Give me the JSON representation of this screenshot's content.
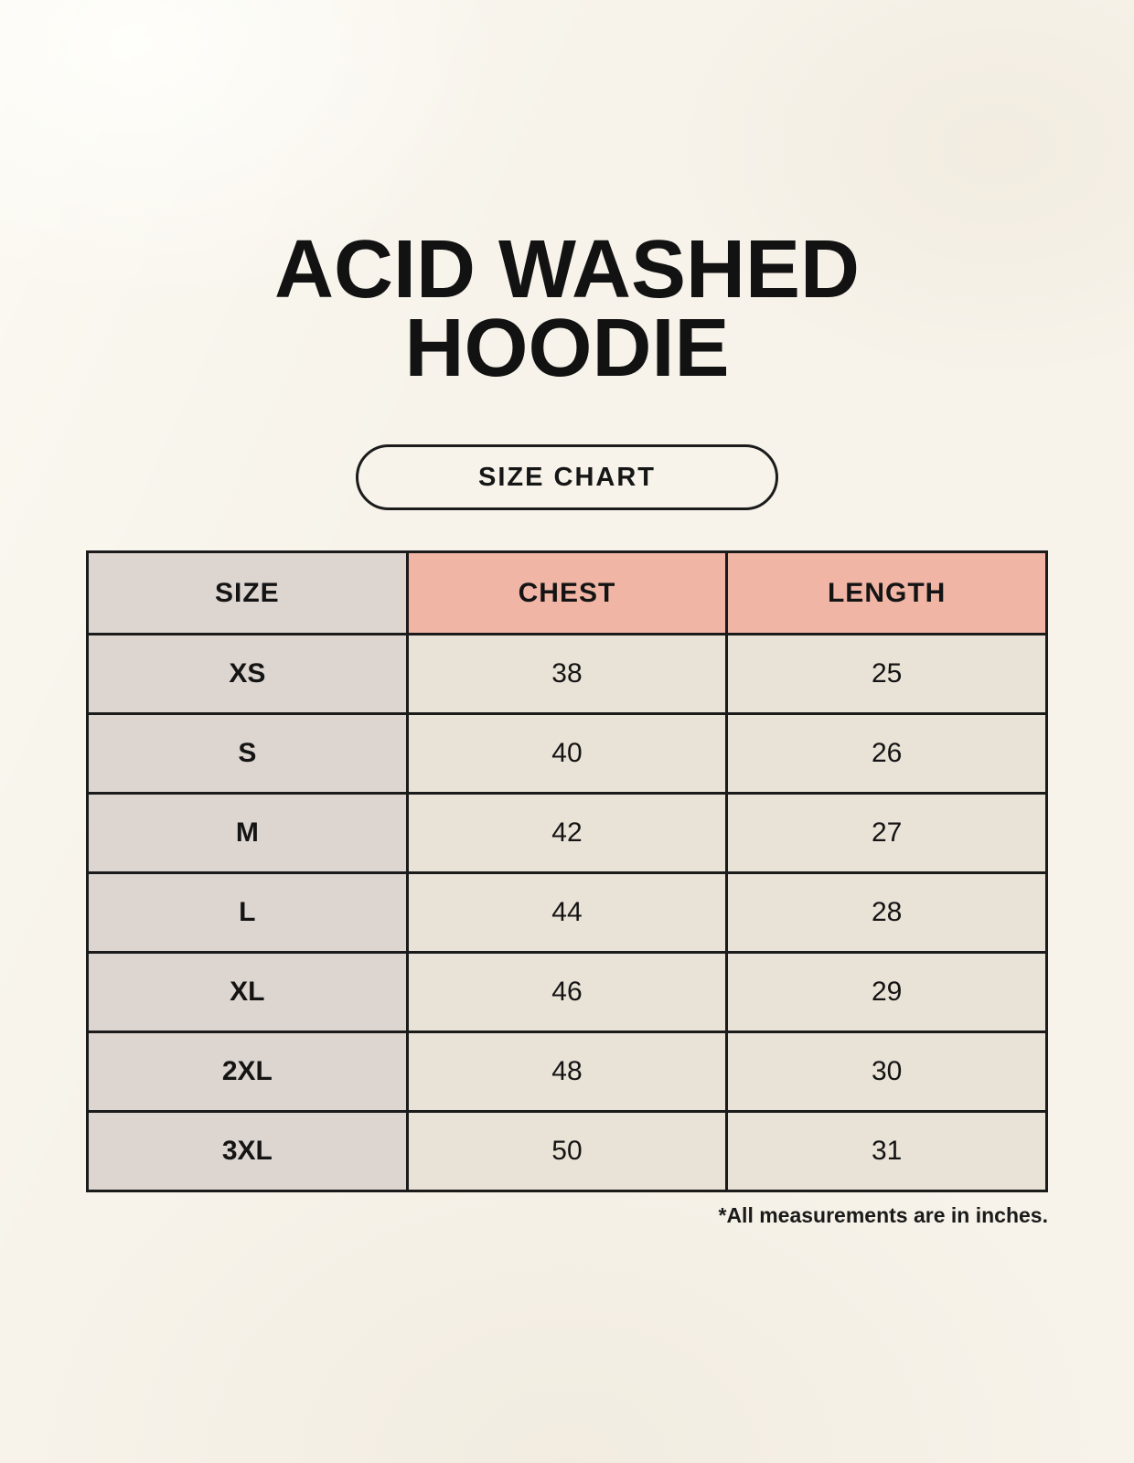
{
  "page_title": {
    "lines": [
      "ACID WASHED",
      "HOODIE"
    ]
  },
  "size_chart_button": {
    "label": "SIZE CHART"
  },
  "footnote": "*All measurements are in inches.",
  "chart_data": {
    "type": "table",
    "title": "ACID WASHED HOODIE",
    "columns": [
      "SIZE",
      "CHEST",
      "LENGTH"
    ],
    "rows": [
      {
        "size": "XS",
        "chest": "38",
        "length": "25"
      },
      {
        "size": "S",
        "chest": "40",
        "length": "26"
      },
      {
        "size": "M",
        "chest": "42",
        "length": "27"
      },
      {
        "size": "L",
        "chest": "44",
        "length": "28"
      },
      {
        "size": "XL",
        "chest": "46",
        "length": "29"
      },
      {
        "size": "2XL",
        "chest": "48",
        "length": "30"
      },
      {
        "size": "3XL",
        "chest": "50",
        "length": "31"
      }
    ],
    "units_note": "*All measurements are in inches."
  },
  "colors": {
    "background": "#f7f3ea",
    "label_column_bg": "#dcd5d0",
    "accent_header_bg": "#f0b5a5",
    "value_cell_bg": "#e9e2d7",
    "table_border": "#1b1b1b",
    "text": "#141414"
  }
}
